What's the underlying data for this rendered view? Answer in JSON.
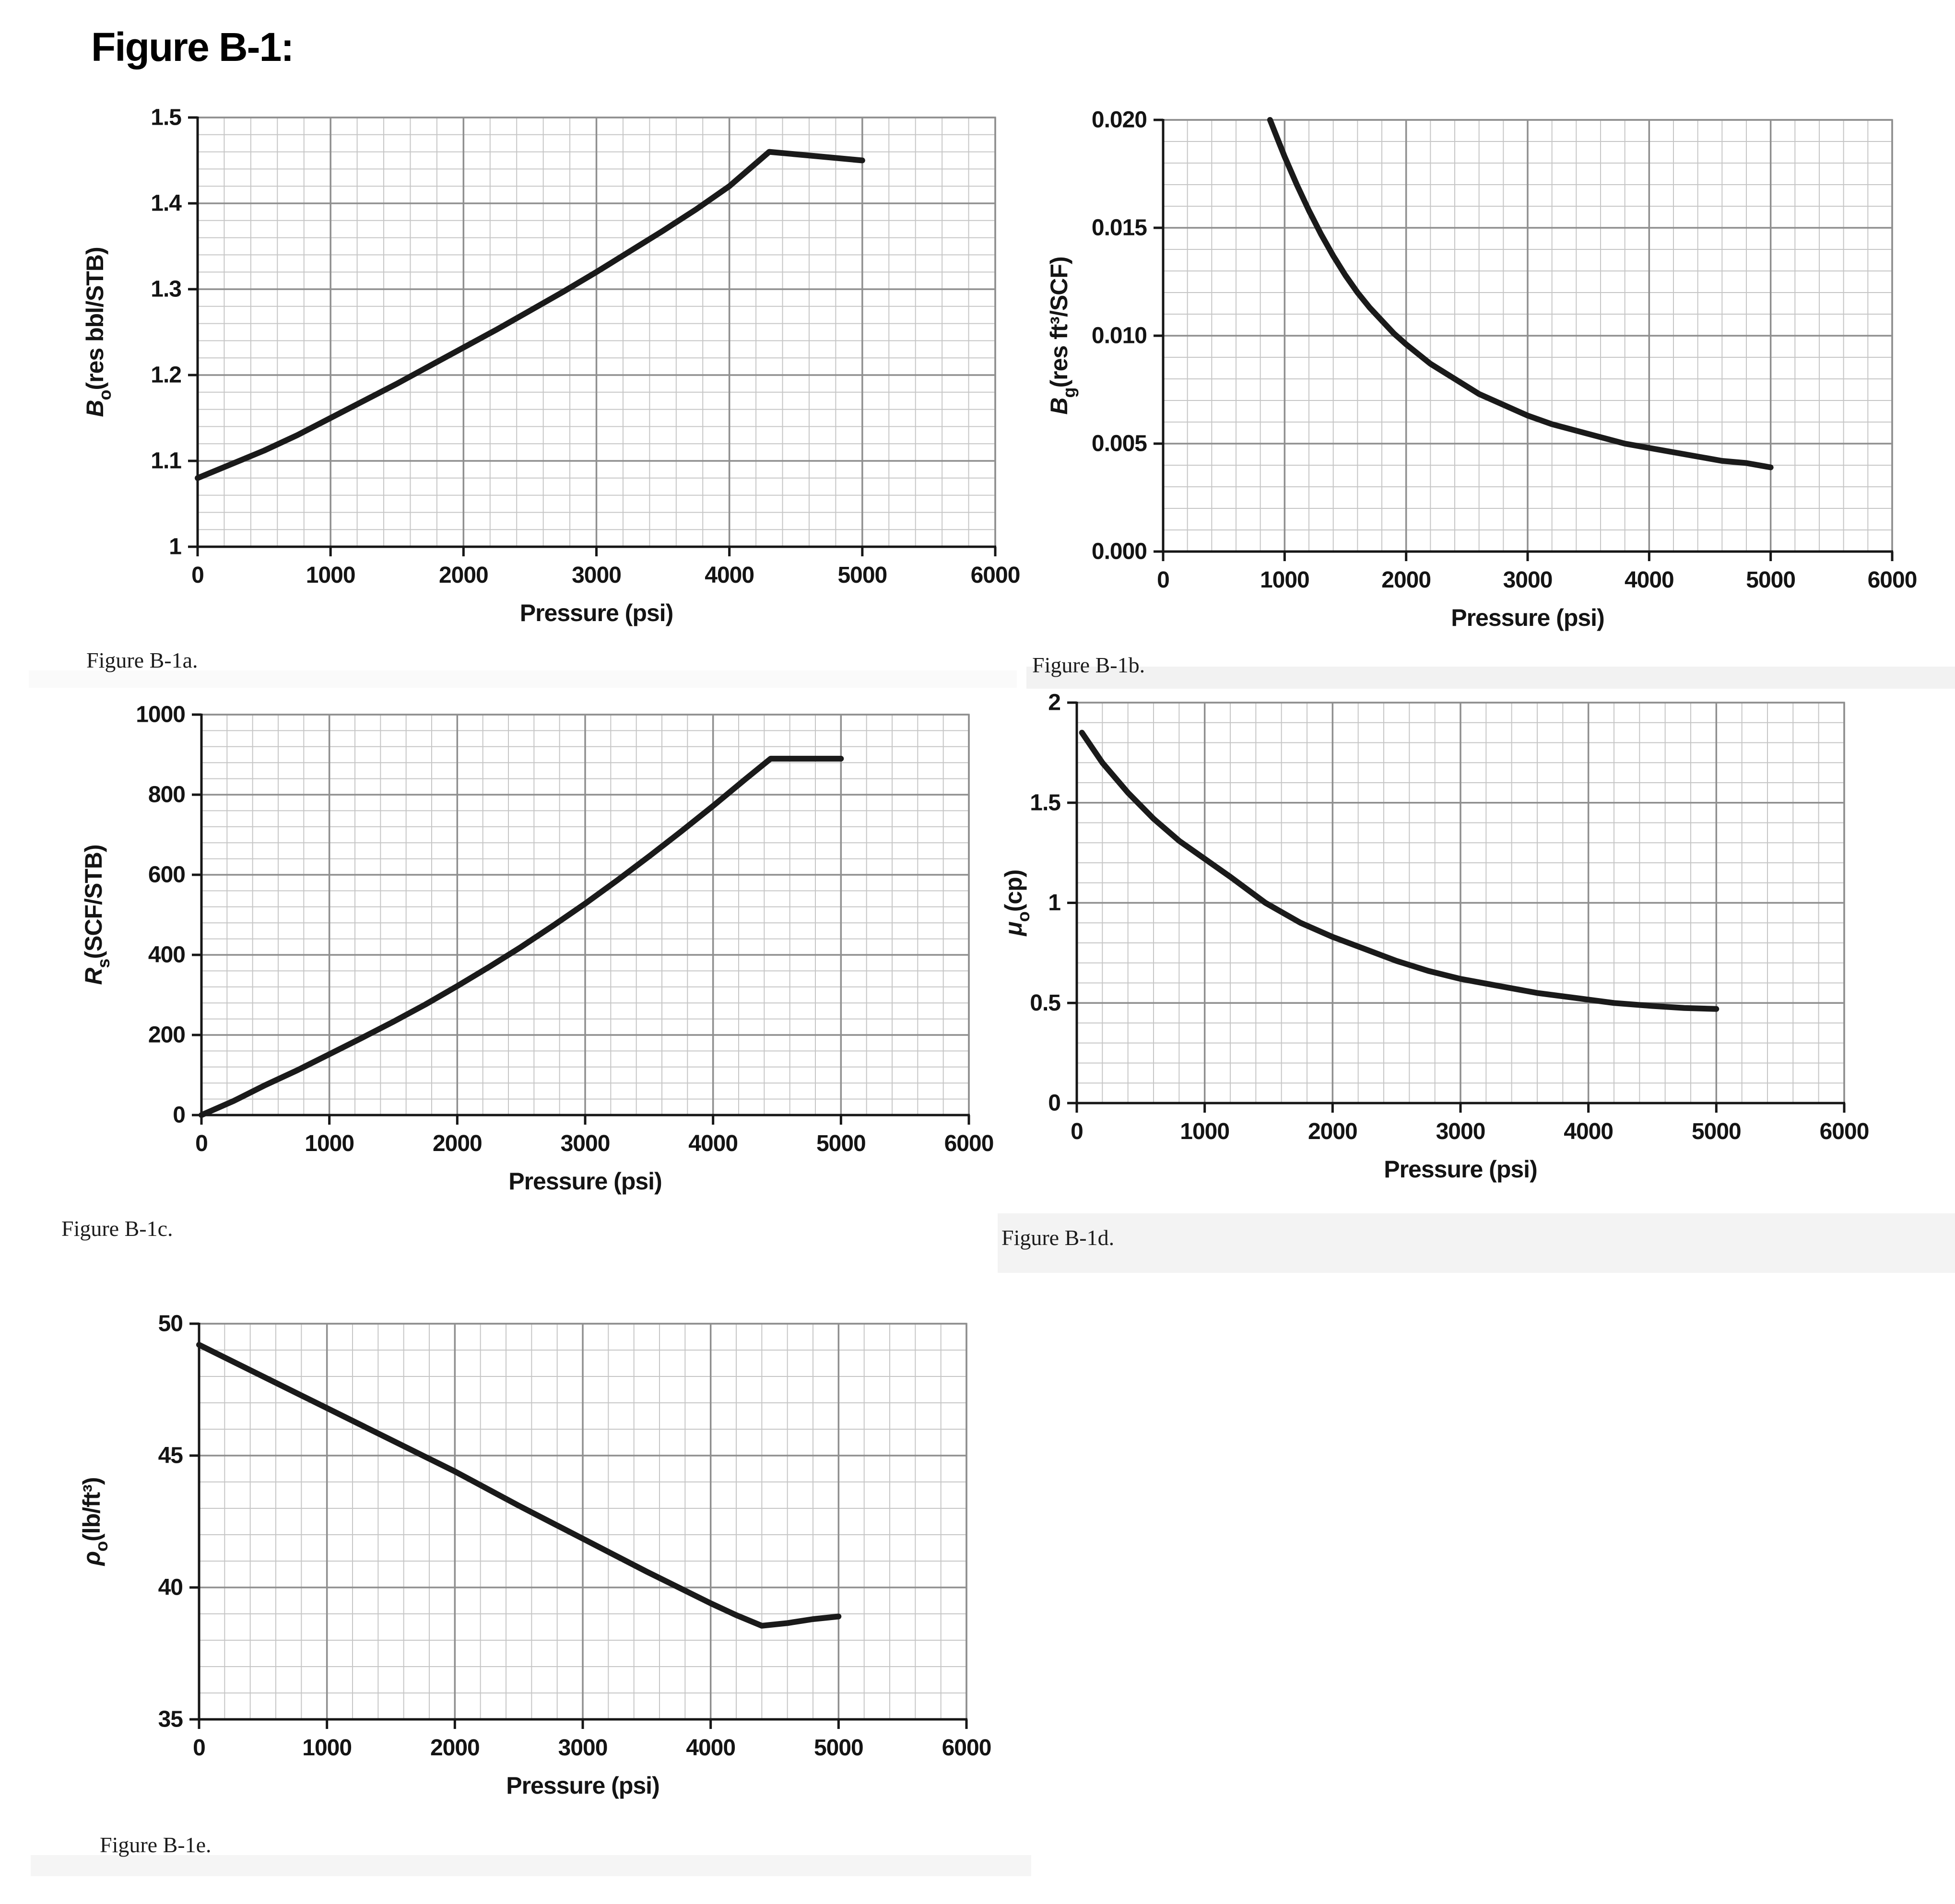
{
  "page_title": "Figure B-1:",
  "colors": {
    "curve": "#1a1a1a",
    "grid_minor": "#c6c6c6",
    "grid_major": "#8f8f8f",
    "axis": "#161616",
    "text": "#141414",
    "caption_band": "#f3f3f3",
    "background": "#ffffff"
  },
  "chart_data": [
    {
      "type": "line",
      "caption": "Figure B-1a.",
      "xlabel": "Pressure (psi)",
      "ylabel": "Bo (res bbl/STB)",
      "ylabel_parts": [
        {
          "text": "B",
          "style": "italic"
        },
        {
          "text": "o",
          "style": "sub"
        },
        {
          "text": "(res bbl/STB)",
          "style": "normal"
        }
      ],
      "xlim": [
        0,
        6000
      ],
      "ylim": [
        1.0,
        1.5
      ],
      "xticks": {
        "values": [
          0,
          1000,
          2000,
          3000,
          4000,
          5000,
          6000
        ],
        "labels": [
          "0",
          "1000",
          "2000",
          "3000",
          "4000",
          "5000",
          "6000"
        ]
      },
      "yticks": {
        "values": [
          1.0,
          1.1,
          1.2,
          1.3,
          1.4,
          1.5
        ],
        "labels": [
          "1",
          "1.1",
          "1.2",
          "1.3",
          "1.4",
          "1.5"
        ]
      },
      "minor": {
        "x": 200,
        "y": 0.02
      },
      "grid": true,
      "legend": false,
      "series": [
        {
          "x": [
            0,
            250,
            500,
            750,
            1000,
            1250,
            1500,
            1750,
            2000,
            2250,
            2500,
            2750,
            3000,
            3250,
            3500,
            3750,
            4000,
            4150,
            4300,
            4650,
            5000
          ],
          "y": [
            1.08,
            1.096,
            1.112,
            1.13,
            1.15,
            1.17,
            1.19,
            1.211,
            1.232,
            1.253,
            1.275,
            1.297,
            1.32,
            1.344,
            1.368,
            1.393,
            1.42,
            1.44,
            1.46,
            1.455,
            1.45
          ]
        }
      ]
    },
    {
      "type": "line",
      "caption": "Figure B-1b.",
      "xlabel": "Pressure (psi)",
      "ylabel": "Bg (res ft³/SCF)",
      "ylabel_parts": [
        {
          "text": "B",
          "style": "italic"
        },
        {
          "text": "g",
          "style": "sub"
        },
        {
          "text": "(res ft³/SCF)",
          "style": "normal"
        }
      ],
      "xlim": [
        0,
        6000
      ],
      "ylim": [
        0.0,
        0.02
      ],
      "xticks": {
        "values": [
          0,
          1000,
          2000,
          3000,
          4000,
          5000,
          6000
        ],
        "labels": [
          "0",
          "1000",
          "2000",
          "3000",
          "4000",
          "5000",
          "6000"
        ]
      },
      "yticks": {
        "values": [
          0.0,
          0.005,
          0.01,
          0.015,
          0.02
        ],
        "labels": [
          "0.000",
          "0.005",
          "0.010",
          "0.015",
          "0.020"
        ]
      },
      "minor": {
        "x": 200,
        "y": 0.001
      },
      "grid": true,
      "legend": false,
      "series": [
        {
          "x": [
            880,
            950,
            1000,
            1100,
            1200,
            1300,
            1400,
            1500,
            1600,
            1700,
            1800,
            1900,
            2000,
            2200,
            2400,
            2600,
            2800,
            3000,
            3200,
            3400,
            3600,
            3800,
            4000,
            4200,
            4400,
            4600,
            4800,
            5000
          ],
          "y": [
            0.02,
            0.019,
            0.0183,
            0.017,
            0.0158,
            0.0147,
            0.0137,
            0.0128,
            0.012,
            0.0113,
            0.0107,
            0.0101,
            0.0096,
            0.0087,
            0.008,
            0.0073,
            0.0068,
            0.0063,
            0.0059,
            0.0056,
            0.0053,
            0.005,
            0.0048,
            0.0046,
            0.0044,
            0.0042,
            0.0041,
            0.0039
          ]
        }
      ]
    },
    {
      "type": "line",
      "caption": "Figure B-1c.",
      "xlabel": "Pressure (psi)",
      "ylabel": "Rs (SCF/STB)",
      "ylabel_parts": [
        {
          "text": "R",
          "style": "italic"
        },
        {
          "text": "s",
          "style": "sub"
        },
        {
          "text": "(SCF/STB)",
          "style": "normal"
        }
      ],
      "xlim": [
        0,
        6000
      ],
      "ylim": [
        0,
        1000
      ],
      "xticks": {
        "values": [
          0,
          1000,
          2000,
          3000,
          4000,
          5000,
          6000
        ],
        "labels": [
          "0",
          "1000",
          "2000",
          "3000",
          "4000",
          "5000",
          "6000"
        ]
      },
      "yticks": {
        "values": [
          0,
          200,
          400,
          600,
          800,
          1000
        ],
        "labels": [
          "0",
          "200",
          "400",
          "600",
          "800",
          "1000"
        ]
      },
      "minor": {
        "x": 200,
        "y": 40
      },
      "grid": true,
      "legend": false,
      "series": [
        {
          "x": [
            0,
            250,
            500,
            750,
            1000,
            1250,
            1500,
            1750,
            2000,
            2250,
            2500,
            2750,
            3000,
            3250,
            3500,
            3750,
            4000,
            4250,
            4450,
            4600,
            5000
          ],
          "y": [
            0,
            35,
            75,
            112,
            152,
            192,
            233,
            276,
            322,
            370,
            420,
            473,
            528,
            586,
            646,
            708,
            772,
            838,
            890,
            890,
            890
          ]
        }
      ]
    },
    {
      "type": "line",
      "caption": "Figure B-1d.",
      "xlabel": "Pressure (psi)",
      "ylabel": "μo (cp)",
      "ylabel_parts": [
        {
          "text": "μ",
          "style": "italic"
        },
        {
          "text": "o",
          "style": "sub"
        },
        {
          "text": "(cp)",
          "style": "normal"
        }
      ],
      "xlim": [
        0,
        6000
      ],
      "ylim": [
        0,
        2
      ],
      "xticks": {
        "values": [
          0,
          1000,
          2000,
          3000,
          4000,
          5000,
          6000
        ],
        "labels": [
          "0",
          "1000",
          "2000",
          "3000",
          "4000",
          "5000",
          "6000"
        ]
      },
      "yticks": {
        "values": [
          0,
          0.5,
          1,
          1.5,
          2
        ],
        "labels": [
          "0",
          "0.5",
          "1",
          "1.5",
          "2"
        ]
      },
      "minor": {
        "x": 200,
        "y": 0.1
      },
      "grid": true,
      "legend": false,
      "series": [
        {
          "x": [
            40,
            200,
            400,
            600,
            800,
            1000,
            1200,
            1475,
            1750,
            2000,
            2250,
            2500,
            2750,
            3000,
            3300,
            3600,
            3900,
            4200,
            4500,
            4750,
            5000
          ],
          "y": [
            1.85,
            1.7,
            1.55,
            1.42,
            1.31,
            1.22,
            1.13,
            1.0,
            0.9,
            0.83,
            0.77,
            0.71,
            0.66,
            0.62,
            0.585,
            0.55,
            0.525,
            0.5,
            0.485,
            0.475,
            0.47
          ]
        }
      ]
    },
    {
      "type": "line",
      "caption": "Figure B-1e.",
      "xlabel": "Pressure (psi)",
      "ylabel": "ρo (lb/ft³)",
      "ylabel_parts": [
        {
          "text": "ρ",
          "style": "italic"
        },
        {
          "text": "o",
          "style": "sub"
        },
        {
          "text": "(lb/ft³)",
          "style": "normal"
        }
      ],
      "xlim": [
        0,
        6000
      ],
      "ylim": [
        35,
        50
      ],
      "xticks": {
        "values": [
          0,
          1000,
          2000,
          3000,
          4000,
          5000,
          6000
        ],
        "labels": [
          "0",
          "1000",
          "2000",
          "3000",
          "4000",
          "5000",
          "6000"
        ]
      },
      "yticks": {
        "values": [
          35,
          40,
          45,
          50
        ],
        "labels": [
          "35",
          "40",
          "45",
          "50"
        ]
      },
      "minor": {
        "x": 200,
        "y": 1
      },
      "grid": true,
      "legend": false,
      "series": [
        {
          "x": [
            0,
            500,
            1000,
            1500,
            2000,
            2500,
            3000,
            3500,
            4000,
            4200,
            4400,
            4600,
            4800,
            5000
          ],
          "y": [
            49.2,
            48.0,
            46.8,
            45.6,
            44.4,
            43.1,
            41.85,
            40.6,
            39.4,
            38.95,
            38.55,
            38.65,
            38.8,
            38.9
          ]
        }
      ]
    }
  ]
}
